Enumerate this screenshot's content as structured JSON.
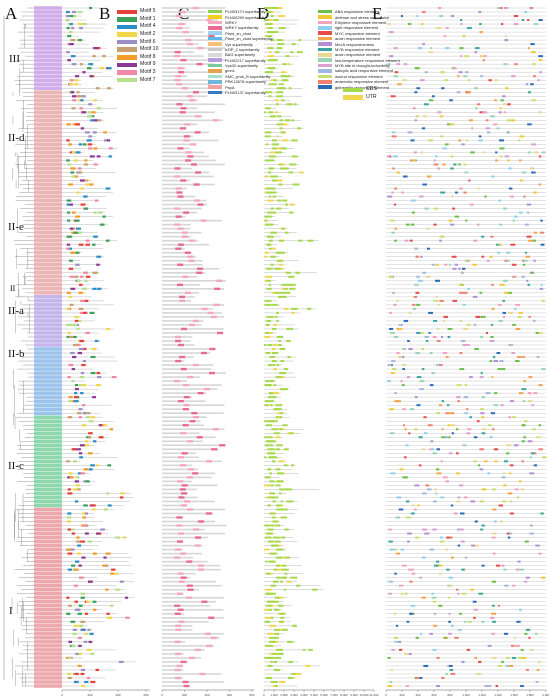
{
  "panels": {
    "a": "A",
    "b": "B",
    "c": "C",
    "d": "D",
    "e": "E"
  },
  "clades": {
    "c3": "III",
    "c2d": "II-d",
    "c2e": "II-e",
    "c2": "II",
    "c2a": "II-a",
    "c2b": "II-b",
    "c2c": "II-c",
    "c1": "I"
  },
  "motif_legend": [
    {
      "label": "Motif 5",
      "color": "#e8403a"
    },
    {
      "label": "Motif 1",
      "color": "#3aa05a"
    },
    {
      "label": "Motif 4",
      "color": "#2a8ec8"
    },
    {
      "label": "Motif 2",
      "color": "#f0d84a"
    },
    {
      "label": "Motif 6",
      "color": "#9d8fc6"
    },
    {
      "label": "Motif 10",
      "color": "#c8a070"
    },
    {
      "label": "Motif 8",
      "color": "#f39c2a"
    },
    {
      "label": "Motif 9",
      "color": "#8a3a92"
    },
    {
      "label": "Motif 3",
      "color": "#f08aa8"
    },
    {
      "label": "Motif 7",
      "color": "#b7e08a"
    }
  ],
  "domain_legend": [
    {
      "label": "PLN03174 superfamily",
      "color": "#8fd14f"
    },
    {
      "label": "PLN00259 superfamily",
      "color": "#f0d020"
    },
    {
      "label": "WRKY",
      "color": "#f5a8c0"
    },
    {
      "label": "WRKY superfamily",
      "color": "#e86b96"
    },
    {
      "label": "Plant_zn_clust",
      "color": "#9ad0f0"
    },
    {
      "label": "Plant_zn_clust superfamily",
      "color": "#5cb8e8"
    },
    {
      "label": "Vpr superfamily",
      "color": "#f4c07a"
    },
    {
      "label": "bZIP_2 superfamily",
      "color": "#c8c8c8"
    },
    {
      "label": "BAG superfamily",
      "color": "#d9d9d9"
    },
    {
      "label": "PLN02217 superfamily",
      "color": "#b79ae0"
    },
    {
      "label": "Vps30 superfamily",
      "color": "#7ac9a0"
    },
    {
      "label": "gmn1",
      "color": "#e7a24d"
    },
    {
      "label": "SMC_prok_B superfamily",
      "color": "#a4dfd0"
    },
    {
      "label": "PRK12678 superfamily",
      "color": "#6db7d9"
    },
    {
      "label": "PspA",
      "color": "#f2a0a0"
    },
    {
      "label": "PLN03137 superfamily",
      "color": "#3a78c0"
    }
  ],
  "cre_legend": [
    {
      "label": "ABA responsive element",
      "color": "#6cc04a"
    },
    {
      "label": "defense and stress responsive",
      "color": "#f0c93a"
    },
    {
      "label": "Ethylene responsive element",
      "color": "#f3a3c0"
    },
    {
      "label": "light responsive element",
      "color": "#8fd0ec"
    },
    {
      "label": "MYC responsive element",
      "color": "#e84a4a"
    },
    {
      "label": "auxin responsive element",
      "color": "#f4a34a"
    },
    {
      "label": "MeJA responsiveness",
      "color": "#b38fd6"
    },
    {
      "label": "MYB responsive element",
      "color": "#3aa5a0"
    },
    {
      "label": "auxin responsive element",
      "color": "#e8d890"
    },
    {
      "label": "low-temperature responsive element",
      "color": "#9bd4b4"
    },
    {
      "label": "MYB site in drought-inducibility",
      "color": "#d9a0d0"
    },
    {
      "label": "salicylic acid responsive element",
      "color": "#a0b8e0"
    },
    {
      "label": "wound responsive element",
      "color": "#c8e070"
    },
    {
      "label": "anaerobic responsive element",
      "color": "#f08070"
    },
    {
      "label": "gibberellin responsive element",
      "color": "#2a6ab8"
    }
  ],
  "gene_structure_legend": [
    {
      "label": "CDS",
      "color": "#a6d94a"
    },
    {
      "label": "UTR",
      "color": "#f2d64b"
    }
  ],
  "axes": {
    "b": [
      "0",
      "200",
      "400",
      "600"
    ],
    "c": [
      "0",
      "200",
      "400",
      "600",
      "800"
    ],
    "d": [
      "0",
      "1,000",
      "2,000",
      "3,000",
      "4,000",
      "5,000",
      "6,000",
      "7,000",
      "8,000",
      "9,000",
      "10,000",
      "11,000"
    ],
    "e": [
      "0",
      "200",
      "400",
      "600",
      "800",
      "1,000",
      "1,200",
      "1,400",
      "1,600",
      "1,800",
      "2,000"
    ]
  }
}
